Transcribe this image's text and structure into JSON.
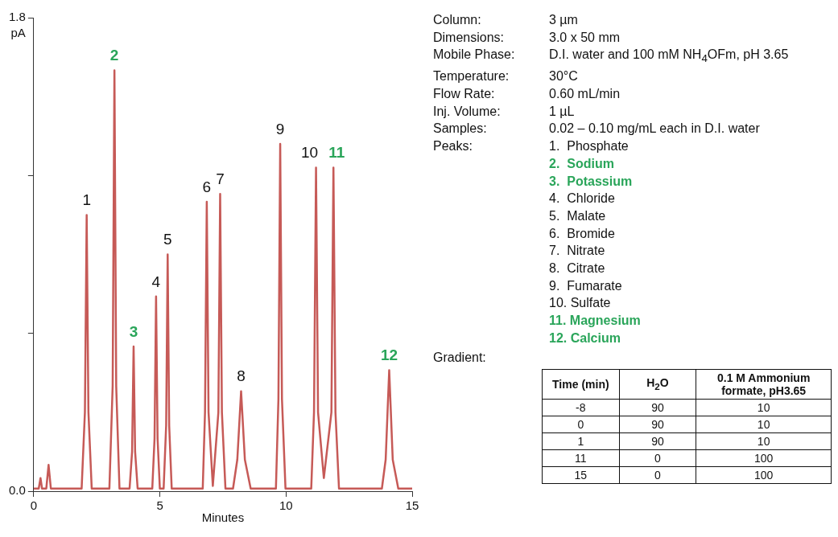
{
  "chart_data": {
    "type": "line",
    "xlabel": "Minutes",
    "ylabel": "pA",
    "xlim": [
      0,
      15
    ],
    "xticks": [
      0,
      5,
      10,
      15
    ],
    "ylim": [
      0,
      1.8
    ],
    "yticks": [
      {
        "value": 0,
        "label": "0.0"
      },
      {
        "value": 0.6,
        "label": null
      },
      {
        "value": 1.2,
        "label": null
      },
      {
        "value": 1.8,
        "label": "1.8"
      }
    ],
    "grid": false,
    "legend": false,
    "marker": "none",
    "series": [
      {
        "color": "#c65a57",
        "x": [
          0,
          0.2,
          0.27,
          0.33,
          0.5,
          0.59,
          0.68,
          1.9,
          2.03,
          2.1,
          2.17,
          2.3,
          3.0,
          3.13,
          3.2,
          3.27,
          3.4,
          3.8,
          3.9,
          3.96,
          4.02,
          4.12,
          4.7,
          4.79,
          4.85,
          4.91,
          5.0,
          5.15,
          5.25,
          5.31,
          5.37,
          5.47,
          6.7,
          6.79,
          6.86,
          6.93,
          7.1,
          7.32,
          7.39,
          7.46,
          7.6,
          7.9,
          8.07,
          8.22,
          8.37,
          8.6,
          9.6,
          9.7,
          9.77,
          9.84,
          9.98,
          11.0,
          11.11,
          11.19,
          11.27,
          11.5,
          11.8,
          11.88,
          11.96,
          12.1,
          13.8,
          13.95,
          14.09,
          14.23,
          14.45,
          15
        ],
        "values": [
          0.01,
          0.01,
          0.05,
          0.01,
          0.01,
          0.1,
          0.01,
          0.01,
          0.3,
          1.05,
          0.3,
          0.01,
          0.01,
          0.4,
          1.6,
          0.4,
          0.01,
          0.01,
          0.15,
          0.55,
          0.15,
          0.01,
          0.01,
          0.2,
          0.74,
          0.2,
          0.01,
          0.01,
          0.25,
          0.9,
          0.25,
          0.01,
          0.01,
          0.3,
          1.1,
          0.3,
          0.02,
          0.3,
          1.13,
          0.3,
          0.01,
          0.01,
          0.12,
          0.38,
          0.12,
          0.01,
          0.01,
          0.35,
          1.32,
          0.35,
          0.01,
          0.01,
          0.3,
          1.23,
          0.3,
          0.05,
          0.3,
          1.23,
          0.3,
          0.01,
          0.01,
          0.12,
          0.46,
          0.12,
          0.01,
          0.01
        ]
      }
    ],
    "annotations": [
      {
        "text": "1",
        "x": 2.1,
        "y": 1.05
      },
      {
        "text": "2",
        "x": 3.2,
        "y": 1.6
      },
      {
        "text": "3",
        "x": 3.96,
        "y": 0.55
      },
      {
        "text": "4",
        "x": 4.85,
        "y": 0.74
      },
      {
        "text": "5",
        "x": 5.31,
        "y": 0.9
      },
      {
        "text": "6",
        "x": 6.86,
        "y": 1.1
      },
      {
        "text": "7",
        "x": 7.39,
        "y": 1.13
      },
      {
        "text": "8",
        "x": 8.22,
        "y": 0.38
      },
      {
        "text": "9",
        "x": 9.77,
        "y": 1.32
      },
      {
        "text": "10",
        "x": 11.19,
        "y": 1.23
      },
      {
        "text": "11",
        "x": 11.88,
        "y": 1.23
      },
      {
        "text": "12",
        "x": 14.09,
        "y": 0.46
      },
      "Column:",
      "3 µm",
      "Dimensions:",
      "3.0 x 50 mm",
      "Mobile Phase:",
      "D.I. water and 100 mM NH$_{4}$OFm, pH 3.65",
      "Temperature:",
      "30°C",
      "Flow Rate:",
      "0.60 mL/min",
      "Inj. Volume:",
      "1 µL",
      "Samples:",
      "0.02 – 0.10 mg/mL each in D.I. water",
      "Peaks:",
      "1.  Phosphate",
      "2.  Sodium",
      "3.  Potassium",
      "4.  Chloride",
      "5.  Malate",
      "6.  Bromide",
      "7.  Nitrate",
      "8.  Citrate",
      "9.  Fumarate",
      "10. Sulfate",
      "11. Magnesium",
      "12. Calcium",
      "Gradient:",
      "Time (min)",
      "H$_{2}$O",
      "0.1 M Ammonium formate, pH3.65",
      "-8",
      "90",
      "10",
      "0",
      "90",
      "10",
      "1",
      "90",
      "10",
      "11",
      "0",
      "100",
      "15",
      "0",
      "100"
    ]
  }
}
